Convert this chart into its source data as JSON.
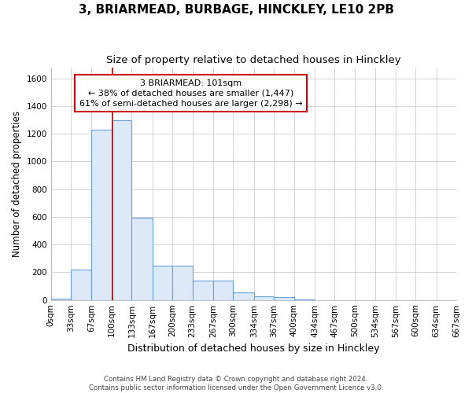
{
  "title": "3, BRIARMEAD, BURBAGE, HINCKLEY, LE10 2PB",
  "subtitle": "Size of property relative to detached houses in Hinckley",
  "xlabel": "Distribution of detached houses by size in Hinckley",
  "ylabel": "Number of detached properties",
  "footer_line1": "Contains HM Land Registry data © Crown copyright and database right 2024.",
  "footer_line2": "Contains public sector information licensed under the Open Government Licence v3.0.",
  "bin_edges": [
    0,
    33,
    67,
    100,
    133,
    167,
    200,
    233,
    267,
    300,
    334,
    367,
    400,
    434,
    467,
    500,
    534,
    567,
    600,
    634,
    667
  ],
  "bar_heights": [
    10,
    220,
    1230,
    1300,
    595,
    245,
    245,
    140,
    140,
    55,
    25,
    22,
    5,
    0,
    0,
    0,
    0,
    0,
    0,
    0
  ],
  "bar_color": "#dce9f8",
  "bar_edge_color": "#6a9fd8",
  "vline_x": 101,
  "vline_color": "#cc0000",
  "annotation_line1": "3 BRIARMEAD: 101sqm",
  "annotation_line2": "← 38% of detached houses are smaller (1,447)",
  "annotation_line3": "61% of semi-detached houses are larger (2,298) →",
  "annotation_box_color": "#ffffff",
  "annotation_box_edge": "#cc0000",
  "ylim": [
    0,
    1680
  ],
  "yticks": [
    0,
    200,
    400,
    600,
    800,
    1000,
    1200,
    1400,
    1600
  ],
  "bg_color": "#ffffff",
  "plot_bg_color": "#ffffff",
  "grid_color": "#cccccc",
  "title_fontsize": 11,
  "subtitle_fontsize": 9.5,
  "tick_label_fontsize": 7.5,
  "ylabel_fontsize": 8.5,
  "xlabel_fontsize": 9,
  "annotation_fontsize": 8
}
